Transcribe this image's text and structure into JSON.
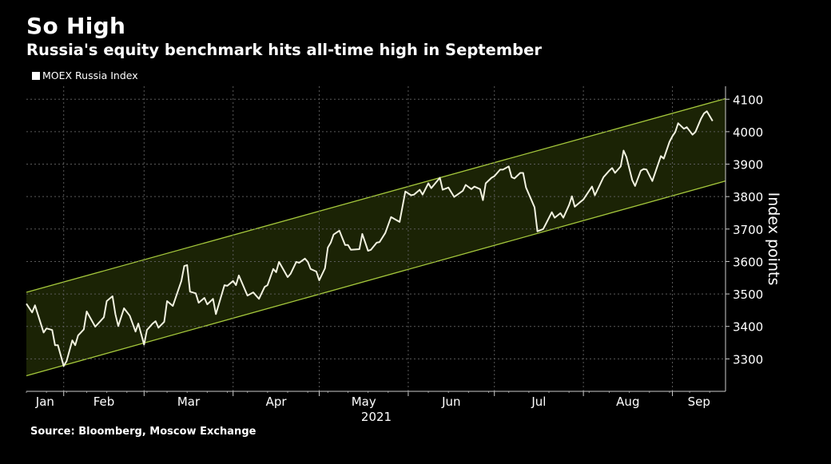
{
  "title": "So High",
  "subtitle": "Russia's equity benchmark hits all-time high in September",
  "source": "Source: Bloomberg, Moscow Exchange",
  "colors": {
    "background": "#000000",
    "line": "#f2f2e0",
    "channel_fill": "#1b2305",
    "channel_line": "#a5c83c",
    "grid": "#5a5a5a"
  },
  "chart_data": {
    "type": "line",
    "title": "So High",
    "subtitle": "Russia's equity benchmark hits all-time high in September",
    "legend": [
      "MOEX Russia Index"
    ],
    "legend_position": "top-left",
    "xlabel": "2021",
    "ylabel": "Index points",
    "x_units": "day of year 2021",
    "xlim": [
      19,
      262.5
    ],
    "ylim": [
      3200,
      4140
    ],
    "y_ticks": [
      3300,
      3400,
      3500,
      3600,
      3700,
      3800,
      3900,
      4000,
      4100
    ],
    "grid": true,
    "months": [
      {
        "label": "Jan",
        "start": 19,
        "end": 32
      },
      {
        "label": "Feb",
        "start": 32,
        "end": 60
      },
      {
        "label": "Mar",
        "start": 60,
        "end": 91
      },
      {
        "label": "Apr",
        "start": 91,
        "end": 121
      },
      {
        "label": "May",
        "start": 121,
        "end": 152
      },
      {
        "label": "Jun",
        "start": 152,
        "end": 182
      },
      {
        "label": "Jul",
        "start": 182,
        "end": 213
      },
      {
        "label": "Aug",
        "start": 213,
        "end": 244
      },
      {
        "label": "Sep",
        "start": 244,
        "end": 262.5
      }
    ],
    "channel": {
      "upper": [
        [
          19,
          3505
        ],
        [
          262.5,
          4102
        ]
      ],
      "lower": [
        [
          19,
          3248
        ],
        [
          262.5,
          3848
        ]
      ]
    },
    "series": [
      {
        "name": "MOEX Russia Index",
        "points": [
          [
            19,
            3470
          ],
          [
            21,
            3443
          ],
          [
            22,
            3465
          ],
          [
            25,
            3381
          ],
          [
            26,
            3394
          ],
          [
            28,
            3389
          ],
          [
            29,
            3342
          ],
          [
            30,
            3342
          ],
          [
            32,
            3278
          ],
          [
            33,
            3293
          ],
          [
            35,
            3357
          ],
          [
            36,
            3342
          ],
          [
            37,
            3372
          ],
          [
            39,
            3391
          ],
          [
            40,
            3446
          ],
          [
            43,
            3399
          ],
          [
            46,
            3428
          ],
          [
            47,
            3478
          ],
          [
            49,
            3493
          ],
          [
            50,
            3438
          ],
          [
            51,
            3401
          ],
          [
            53,
            3456
          ],
          [
            55,
            3433
          ],
          [
            57,
            3384
          ],
          [
            58,
            3409
          ],
          [
            60,
            3344
          ],
          [
            61,
            3389
          ],
          [
            63,
            3409
          ],
          [
            64,
            3416
          ],
          [
            65,
            3396
          ],
          [
            67,
            3414
          ],
          [
            68,
            3478
          ],
          [
            70,
            3463
          ],
          [
            73,
            3540
          ],
          [
            74,
            3586
          ],
          [
            75,
            3589
          ],
          [
            76,
            3507
          ],
          [
            78,
            3502
          ],
          [
            79,
            3473
          ],
          [
            81,
            3488
          ],
          [
            82,
            3468
          ],
          [
            84,
            3485
          ],
          [
            85,
            3438
          ],
          [
            88,
            3527
          ],
          [
            89,
            3525
          ],
          [
            91,
            3540
          ],
          [
            92,
            3527
          ],
          [
            93,
            3557
          ],
          [
            96,
            3495
          ],
          [
            98,
            3505
          ],
          [
            100,
            3485
          ],
          [
            102,
            3522
          ],
          [
            103,
            3527
          ],
          [
            105,
            3577
          ],
          [
            106,
            3567
          ],
          [
            107,
            3599
          ],
          [
            110,
            3552
          ],
          [
            111,
            3562
          ],
          [
            113,
            3599
          ],
          [
            114,
            3596
          ],
          [
            116,
            3609
          ],
          [
            117,
            3599
          ],
          [
            118,
            3577
          ],
          [
            120,
            3569
          ],
          [
            121,
            3542
          ],
          [
            123,
            3579
          ],
          [
            124,
            3643
          ],
          [
            125,
            3658
          ],
          [
            126,
            3683
          ],
          [
            128,
            3695
          ],
          [
            130,
            3651
          ],
          [
            131,
            3651
          ],
          [
            132,
            3636
          ],
          [
            135,
            3638
          ],
          [
            136,
            3685
          ],
          [
            138,
            3633
          ],
          [
            139,
            3636
          ],
          [
            141,
            3658
          ],
          [
            142,
            3660
          ],
          [
            144,
            3688
          ],
          [
            146,
            3737
          ],
          [
            149,
            3722
          ],
          [
            151,
            3816
          ],
          [
            153,
            3804
          ],
          [
            154,
            3806
          ],
          [
            156,
            3821
          ],
          [
            157,
            3806
          ],
          [
            159,
            3841
          ],
          [
            160,
            3826
          ],
          [
            163,
            3858
          ],
          [
            164,
            3821
          ],
          [
            166,
            3828
          ],
          [
            168,
            3799
          ],
          [
            171,
            3818
          ],
          [
            172,
            3836
          ],
          [
            174,
            3823
          ],
          [
            175,
            3831
          ],
          [
            177,
            3823
          ],
          [
            178,
            3789
          ],
          [
            179,
            3841
          ],
          [
            181,
            3858
          ],
          [
            182,
            3863
          ],
          [
            183,
            3873
          ],
          [
            184,
            3883
          ],
          [
            185,
            3883
          ],
          [
            187,
            3893
          ],
          [
            188,
            3860
          ],
          [
            189,
            3856
          ],
          [
            191,
            3873
          ],
          [
            192,
            3873
          ],
          [
            193,
            3828
          ],
          [
            196,
            3767
          ],
          [
            197,
            3693
          ],
          [
            199,
            3700
          ],
          [
            200,
            3717
          ],
          [
            202,
            3752
          ],
          [
            203,
            3735
          ],
          [
            205,
            3749
          ],
          [
            206,
            3735
          ],
          [
            208,
            3774
          ],
          [
            209,
            3801
          ],
          [
            210,
            3769
          ],
          [
            212,
            3784
          ],
          [
            213,
            3791
          ],
          [
            216,
            3831
          ],
          [
            217,
            3804
          ],
          [
            220,
            3860
          ],
          [
            222,
            3880
          ],
          [
            223,
            3888
          ],
          [
            224,
            3873
          ],
          [
            226,
            3893
          ],
          [
            227,
            3942
          ],
          [
            228,
            3922
          ],
          [
            230,
            3851
          ],
          [
            231,
            3833
          ],
          [
            233,
            3880
          ],
          [
            234,
            3885
          ],
          [
            235,
            3883
          ],
          [
            237,
            3848
          ],
          [
            240,
            3925
          ],
          [
            241,
            3917
          ],
          [
            243,
            3969
          ],
          [
            244,
            3986
          ],
          [
            245,
            3999
          ],
          [
            246,
            4026
          ],
          [
            248,
            4009
          ],
          [
            249,
            4014
          ],
          [
            251,
            3991
          ],
          [
            252,
            3999
          ],
          [
            254,
            4041
          ],
          [
            255,
            4056
          ],
          [
            256,
            4063
          ],
          [
            258,
            4033
          ]
        ]
      }
    ]
  }
}
